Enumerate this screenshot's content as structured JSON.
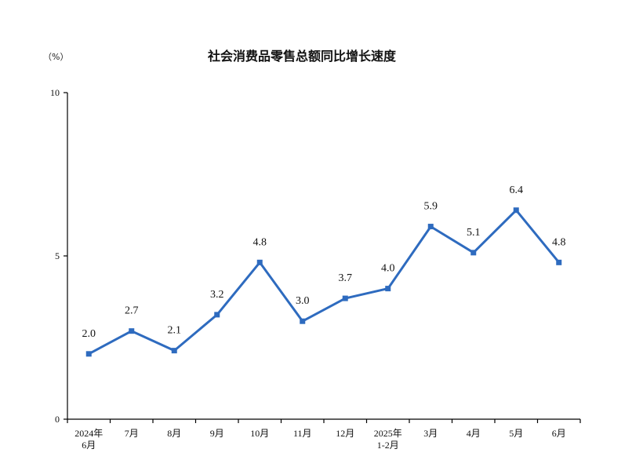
{
  "chart_data": {
    "type": "line",
    "title": "社会消费品零售总额同比增长速度",
    "unit_label": "（%）",
    "categories": [
      [
        "2024年",
        "6月"
      ],
      [
        "7月"
      ],
      [
        "8月"
      ],
      [
        "9月"
      ],
      [
        "10月"
      ],
      [
        "11月"
      ],
      [
        "12月"
      ],
      [
        "2025年",
        "1-2月"
      ],
      [
        "3月"
      ],
      [
        "4月"
      ],
      [
        "5月"
      ],
      [
        "6月"
      ]
    ],
    "series": [
      {
        "values": [
          2.0,
          2.7,
          2.1,
          3.2,
          4.8,
          3.0,
          3.7,
          4.0,
          5.9,
          5.1,
          6.4,
          4.8
        ],
        "data_labels": [
          "2.0",
          "2.7",
          "2.1",
          "3.2",
          "4.8",
          "3.0",
          "3.7",
          "4.0",
          "5.9",
          "5.1",
          "6.4",
          "4.8"
        ],
        "color": "#2E6BBF"
      }
    ],
    "ylim": [
      0,
      10
    ],
    "yticks": [
      "0",
      "5",
      "10"
    ],
    "xlabel": "",
    "ylabel": "",
    "grid": false,
    "legend": "none"
  }
}
